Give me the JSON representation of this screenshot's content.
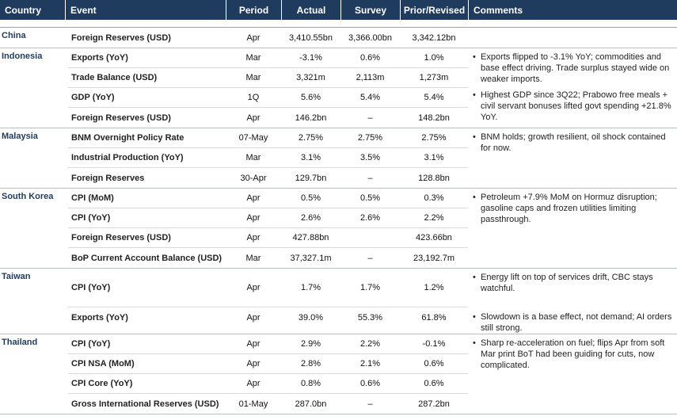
{
  "header": {
    "country": "Country",
    "event": "Event",
    "period": "Period",
    "actual": "Actual",
    "survey": "Survey",
    "prior": "Prior/Revised",
    "comments": "Comments"
  },
  "groups": [
    {
      "country": "China",
      "rows": [
        {
          "event": "Foreign Reserves (USD)",
          "period": "Apr",
          "actual": "3,410.55bn",
          "survey": "3,366.00bn",
          "prior": "3,342.12bn"
        }
      ],
      "comments": []
    },
    {
      "country": "Indonesia",
      "rows": [
        {
          "event": "Exports (YoY)",
          "period": "Mar",
          "actual": "-3.1%",
          "survey": "0.6%",
          "prior": "1.0%"
        },
        {
          "event": "Trade Balance (USD)",
          "period": "Mar",
          "actual": "3,321m",
          "survey": "2,113m",
          "prior": "1,273m"
        },
        {
          "event": "GDP (YoY)",
          "period": "1Q",
          "actual": "5.6%",
          "survey": "5.4%",
          "prior": "5.4%"
        },
        {
          "event": "Foreign Reserves (USD)",
          "period": "Apr",
          "actual": "146.2bn",
          "survey": "–",
          "prior": "148.2bn"
        }
      ],
      "comments": [
        "Exports flipped to -3.1% YoY; commodities and base effect driving. Trade surplus stayed wide on weaker imports.",
        "Highest GDP since 3Q22; Prabowo free meals + civil servant bonuses lifted govt spending +21.8% YoY."
      ]
    },
    {
      "country": "Malaysia",
      "rows": [
        {
          "event": "BNM Overnight Policy Rate",
          "period": "07-May",
          "actual": "2.75%",
          "survey": "2.75%",
          "prior": "2.75%"
        },
        {
          "event": "Industrial Production (YoY)",
          "period": "Mar",
          "actual": "3.1%",
          "survey": "3.5%",
          "prior": "3.1%"
        },
        {
          "event": "Foreign Reserves",
          "period": "30-Apr",
          "actual": "129.7bn",
          "survey": "–",
          "prior": "128.8bn"
        }
      ],
      "comments": [
        "BNM holds; growth resilient, oil shock contained for now."
      ]
    },
    {
      "country": "South Korea",
      "rows": [
        {
          "event": "CPI (MoM)",
          "period": "Apr",
          "actual": "0.5%",
          "survey": "0.5%",
          "prior": "0.3%"
        },
        {
          "event": "CPI (YoY)",
          "period": "Apr",
          "actual": "2.6%",
          "survey": "2.6%",
          "prior": "2.2%"
        },
        {
          "event": "Foreign Reserves (USD)",
          "period": "Apr",
          "actual": "427.88bn",
          "survey": "",
          "prior": "423.66bn"
        },
        {
          "event": "BoP Current Account Balance (USD)",
          "period": "Mar",
          "actual": "37,327.1m",
          "survey": "–",
          "prior": "23,192.7m"
        }
      ],
      "comments": [
        "Petroleum +7.9% MoM on Hormuz disruption; gasoline caps and frozen utilities limiting passthrough."
      ]
    },
    {
      "country": "Taiwan",
      "rows": [
        {
          "event": "CPI (YoY)",
          "period": "Apr",
          "actual": "1.7%",
          "survey": "1.7%",
          "prior": "1.2%"
        },
        {
          "event": "Exports (YoY)",
          "period": "Apr",
          "actual": "39.0%",
          "survey": "55.3%",
          "prior": "61.8%"
        }
      ],
      "comments": [
        "Energy lift on top of services drift, CBC stays watchful.",
        "Slowdown is a base effect, not demand; AI orders still strong."
      ]
    },
    {
      "country": "Thailand",
      "rows": [
        {
          "event": "CPI (YoY)",
          "period": "Apr",
          "actual": "2.9%",
          "survey": "2.2%",
          "prior": "-0.1%"
        },
        {
          "event": "CPI NSA (MoM)",
          "period": "Apr",
          "actual": "2.8%",
          "survey": "2.1%",
          "prior": "0.6%"
        },
        {
          "event": "CPI Core (YoY)",
          "period": "Apr",
          "actual": "0.8%",
          "survey": "0.6%",
          "prior": "0.6%"
        },
        {
          "event": "Gross International Reserves (USD)",
          "period": "01-May",
          "actual": "287.0bn",
          "survey": "–",
          "prior": "287.2bn"
        }
      ],
      "comments": [
        "Sharp re-acceleration on fuel; flips Apr from soft Mar print BoT had been guiding for cuts, now complicated."
      ]
    }
  ],
  "bullet": "•"
}
